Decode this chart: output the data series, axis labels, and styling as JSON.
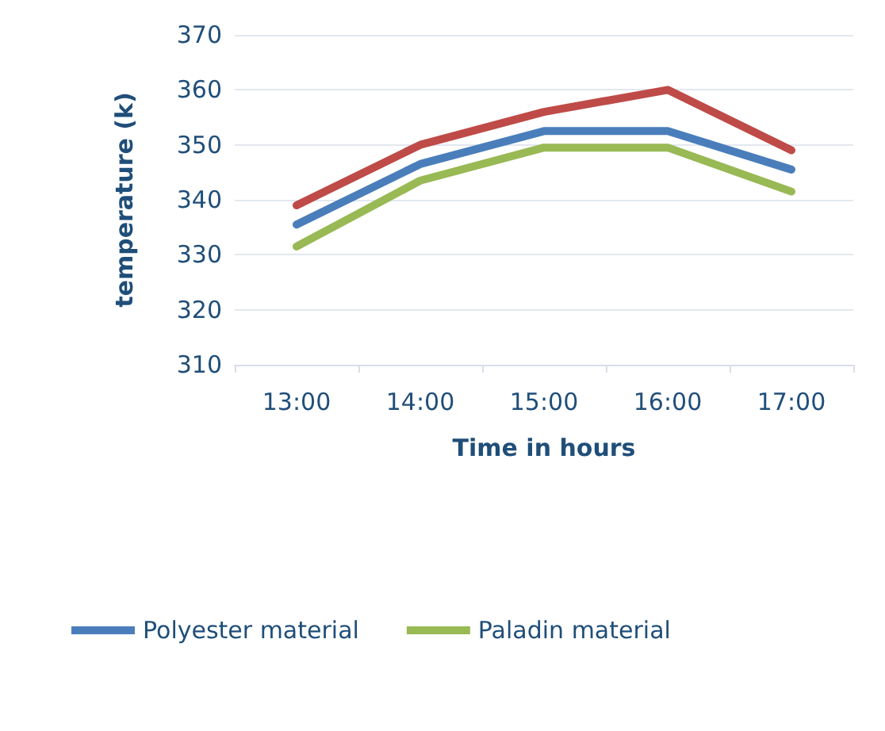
{
  "chart_data": {
    "type": "line",
    "xlabel": "Time in hours",
    "ylabel": "temperature (k)",
    "categories": [
      "13:00",
      "14:00",
      "15:00",
      "16:00",
      "17:00"
    ],
    "series": [
      {
        "name": "Polyester material",
        "color": "#4a7ebb",
        "values": [
          335.5,
          346.5,
          352.5,
          352.5,
          345.5
        ]
      },
      {
        "color": "#be4b48",
        "values": [
          339,
          350,
          356,
          360,
          349
        ]
      },
      {
        "name": "Paladin material",
        "color": "#98b954",
        "values": [
          331.5,
          343.5,
          349.5,
          349.5,
          341.5
        ]
      }
    ],
    "ylim": [
      310,
      370
    ],
    "yticks": [
      310,
      320,
      330,
      340,
      350,
      360,
      370
    ],
    "grid": "y",
    "legend": "bottom",
    "marker": "none",
    "line_style": "solid"
  }
}
